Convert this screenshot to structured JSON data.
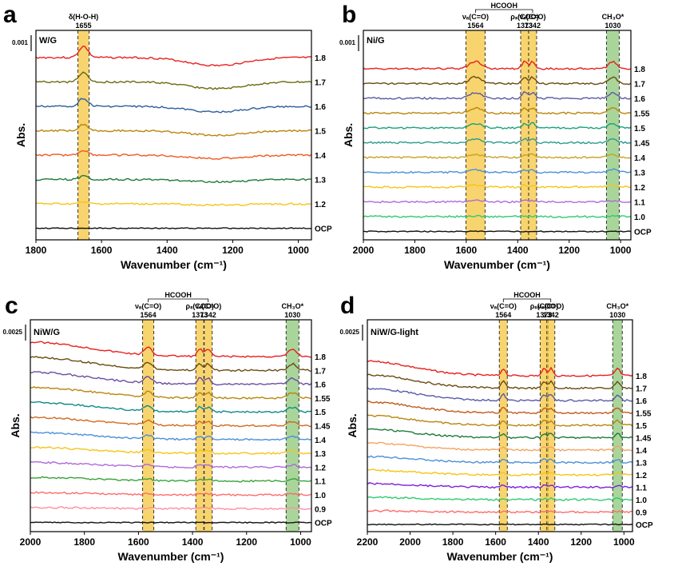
{
  "figure": {
    "panels": [
      {
        "panel_label": "a",
        "sample": "W/G",
        "scale_bar": "0.001",
        "x_axis_label": "Wavenumber (cm⁻¹)",
        "y_axis_label": "Abs.",
        "xlim": [
          1800,
          960
        ],
        "xticks": [
          1800,
          1600,
          1400,
          1200,
          1000
        ],
        "bands": [
          {
            "wavenumber": 1655,
            "width": 14,
            "color": "#f6c53d",
            "label": "δ(H-O-H)",
            "value_label": "1655"
          }
        ],
        "hcooh_label": "",
        "series": [
          {
            "label": "1.8",
            "color": "#e8201e"
          },
          {
            "label": "1.7",
            "color": "#6b6a10"
          },
          {
            "label": "1.6",
            "color": "#2e5f9e"
          },
          {
            "label": "1.5",
            "color": "#b8860b"
          },
          {
            "label": "1.4",
            "color": "#f05a22"
          },
          {
            "label": "1.3",
            "color": "#1f7a3a"
          },
          {
            "label": "1.2",
            "color": "#f5c518"
          },
          {
            "label": "OCP",
            "color": "#111111"
          }
        ]
      },
      {
        "panel_label": "b",
        "sample": "Ni/G",
        "scale_bar": "0.001",
        "x_axis_label": "Wavenumber (cm⁻¹)",
        "y_axis_label": "Abs.",
        "xlim": [
          2000,
          960
        ],
        "xticks": [
          2000,
          1800,
          1600,
          1400,
          1200,
          1000
        ],
        "bands": [
          {
            "wavenumber": 1564,
            "width": 24,
            "color": "#f6c53d",
            "label": "νₐ(C=O)",
            "value_label": "1564"
          },
          {
            "wavenumber": 1373,
            "width": 10,
            "color": "#f6c53d",
            "label": "ρₛ(COO)",
            "value_label": "1373"
          },
          {
            "wavenumber": 1342,
            "width": 10,
            "color": "#f6c53d",
            "label": "νₛ(C=O)",
            "value_label": "1342"
          },
          {
            "wavenumber": 1030,
            "width": 16,
            "color": "#8cc77a",
            "label": "CH₃O*",
            "value_label": "1030"
          }
        ],
        "hcooh_label": "HCOOH",
        "series": [
          {
            "label": "1.8",
            "color": "#e8201e"
          },
          {
            "label": "1.7",
            "color": "#6b4a10"
          },
          {
            "label": "1.6",
            "color": "#5a5aa8"
          },
          {
            "label": "1.55",
            "color": "#b8860b"
          },
          {
            "label": "1.5",
            "color": "#1aa37a"
          },
          {
            "label": "1.45",
            "color": "#2a9d8f"
          },
          {
            "label": "1.4",
            "color": "#c9a227"
          },
          {
            "label": "1.3",
            "color": "#4a90d9"
          },
          {
            "label": "1.2",
            "color": "#f5c518"
          },
          {
            "label": "1.1",
            "color": "#b06ad9"
          },
          {
            "label": "1.0",
            "color": "#2ecc71"
          },
          {
            "label": "OCP",
            "color": "#111111"
          }
        ]
      },
      {
        "panel_label": "c",
        "sample": "NiW/G",
        "scale_bar": "0.0025",
        "x_axis_label": "Wavenumber (cm⁻¹)",
        "y_axis_label": "Abs.",
        "xlim": [
          2000,
          960
        ],
        "xticks": [
          2000,
          1800,
          1600,
          1400,
          1200,
          1000
        ],
        "bands": [
          {
            "wavenumber": 1564,
            "width": 14,
            "color": "#f6c53d",
            "label": "νₐ(C=O)",
            "value_label": "1564"
          },
          {
            "wavenumber": 1373,
            "width": 10,
            "color": "#f6c53d",
            "label": "ρₛ(COO)",
            "value_label": "1373"
          },
          {
            "wavenumber": 1342,
            "width": 10,
            "color": "#f6c53d",
            "label": "νₛ(C=O)",
            "value_label": "1342"
          },
          {
            "wavenumber": 1030,
            "width": 16,
            "color": "#8cc77a",
            "label": "CH₃O*",
            "value_label": "1030"
          }
        ],
        "hcooh_label": "HCOOH",
        "series": [
          {
            "label": "1.8",
            "color": "#e8201e"
          },
          {
            "label": "1.7",
            "color": "#6b4a10"
          },
          {
            "label": "1.6",
            "color": "#6a4fa0"
          },
          {
            "label": "1.55",
            "color": "#b8860b"
          },
          {
            "label": "1.5",
            "color": "#0f8a8a"
          },
          {
            "label": "1.45",
            "color": "#d2691e"
          },
          {
            "label": "1.4",
            "color": "#4a90d9"
          },
          {
            "label": "1.3",
            "color": "#f5c518"
          },
          {
            "label": "1.2",
            "color": "#b06ad9"
          },
          {
            "label": "1.1",
            "color": "#3aa33a"
          },
          {
            "label": "1.0",
            "color": "#ff6b6b"
          },
          {
            "label": "0.9",
            "color": "#ff8fa3"
          },
          {
            "label": "OCP",
            "color": "#111111"
          }
        ]
      },
      {
        "panel_label": "d",
        "sample": "NiW/G-light",
        "scale_bar": "0.0025",
        "x_axis_label": "Wavenumber (cm⁻¹)",
        "y_axis_label": "Abs.",
        "xlim": [
          2200,
          960
        ],
        "xticks": [
          2200,
          2000,
          1800,
          1600,
          1400,
          1200,
          1000
        ],
        "bands": [
          {
            "wavenumber": 1564,
            "width": 10,
            "color": "#f6c53d",
            "label": "νₐ(C=O)",
            "value_label": "1564"
          },
          {
            "wavenumber": 1373,
            "width": 10,
            "color": "#f6c53d",
            "label": "ρₛ(COO)",
            "value_label": "1373"
          },
          {
            "wavenumber": 1342,
            "width": 10,
            "color": "#f6c53d",
            "label": "νₛ(C=O)",
            "value_label": "1342"
          },
          {
            "wavenumber": 1030,
            "width": 12,
            "color": "#8cc77a",
            "label": "CH₃O*",
            "value_label": "1030"
          }
        ],
        "hcooh_label": "HCOOH",
        "series": [
          {
            "label": "1.8",
            "color": "#e8201e"
          },
          {
            "label": "1.7",
            "color": "#6b4a10"
          },
          {
            "label": "1.6",
            "color": "#5a5aa8"
          },
          {
            "label": "1.55",
            "color": "#c25a1a"
          },
          {
            "label": "1.5",
            "color": "#b8860b"
          },
          {
            "label": "1.45",
            "color": "#1f7a3a"
          },
          {
            "label": "1.4",
            "color": "#f4a460"
          },
          {
            "label": "1.3",
            "color": "#4a90d9"
          },
          {
            "label": "1.2",
            "color": "#f5c518"
          },
          {
            "label": "1.1",
            "color": "#7b1fe0"
          },
          {
            "label": "1.0",
            "color": "#2ecc71"
          },
          {
            "label": "0.9",
            "color": "#ff6b6b"
          },
          {
            "label": "OCP",
            "color": "#111111"
          }
        ]
      }
    ]
  },
  "chart_data": [
    {
      "type": "line",
      "panel": "a",
      "xlabel": "Wavenumber (cm⁻¹)",
      "ylabel": "Abs.",
      "xlim": [
        1800,
        960
      ],
      "series": [
        "1.8",
        "1.7",
        "1.6",
        "1.5",
        "1.4",
        "1.3",
        "1.2",
        "OCP"
      ]
    },
    {
      "type": "line",
      "panel": "b",
      "xlabel": "Wavenumber (cm⁻¹)",
      "ylabel": "Abs.",
      "xlim": [
        2000,
        960
      ],
      "series": [
        "1.8",
        "1.7",
        "1.6",
        "1.55",
        "1.5",
        "1.45",
        "1.4",
        "1.3",
        "1.2",
        "1.1",
        "1.0",
        "OCP"
      ]
    },
    {
      "type": "line",
      "panel": "c",
      "xlabel": "Wavenumber (cm⁻¹)",
      "ylabel": "Abs.",
      "xlim": [
        2000,
        960
      ],
      "series": [
        "1.8",
        "1.7",
        "1.6",
        "1.55",
        "1.5",
        "1.45",
        "1.4",
        "1.3",
        "1.2",
        "1.1",
        "1.0",
        "0.9",
        "OCP"
      ]
    },
    {
      "type": "line",
      "panel": "d",
      "xlabel": "Wavenumber (cm⁻¹)",
      "ylabel": "Abs.",
      "xlim": [
        2200,
        960
      ],
      "series": [
        "1.8",
        "1.7",
        "1.6",
        "1.55",
        "1.5",
        "1.45",
        "1.4",
        "1.3",
        "1.2",
        "1.1",
        "1.0",
        "0.9",
        "OCP"
      ]
    }
  ]
}
